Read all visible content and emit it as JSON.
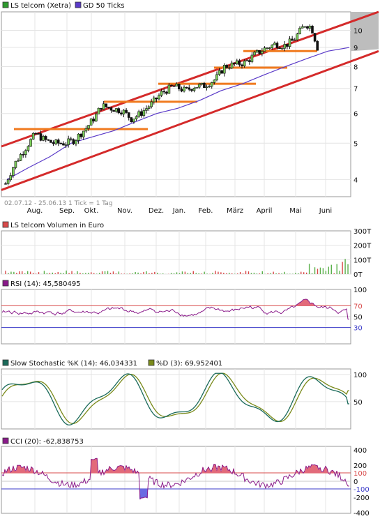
{
  "chart_data": [
    {
      "type": "candlestick",
      "legend": [
        {
          "label": "LS telcom (Xetra)",
          "color": "#2e9a2e"
        },
        {
          "label": "GD 50 Ticks",
          "color": "#5a3ac8"
        }
      ],
      "caption": "02.07.12 - 25.06.13   1 Tick = 1 Tag",
      "x_tick_labels": [
        "Aug.",
        "Sep.",
        "Okt.",
        "Nov.",
        "Dez.",
        "Jan.",
        "Feb.",
        "März",
        "April",
        "Mai",
        "Juni"
      ],
      "y_tick_labels": [
        "4",
        "5",
        "6",
        "7",
        "8",
        "9",
        "10"
      ],
      "y_scale": "log",
      "ylim": [
        3.6,
        11.2
      ],
      "price_path": {
        "x_month_index": [
          0,
          0.3,
          0.7,
          1.0,
          1.3,
          1.6,
          2.0,
          2.3,
          2.7,
          3.0,
          3.2,
          3.5,
          3.9,
          4.2,
          4.5,
          4.9,
          5.2,
          5.6,
          6.0,
          6.3,
          6.6,
          7.0,
          7.3,
          7.6,
          8.0,
          8.3,
          8.6,
          9.0,
          9.3,
          9.6,
          10.0,
          10.2,
          10.4
        ],
        "close": [
          3.9,
          4.4,
          4.9,
          5.3,
          5.1,
          5.0,
          5.0,
          5.1,
          5.5,
          5.9,
          6.3,
          6.2,
          6.1,
          5.8,
          6.0,
          6.4,
          6.8,
          7.1,
          6.9,
          7.1,
          7.1,
          7.4,
          8.0,
          8.1,
          8.2,
          8.6,
          8.9,
          9.2,
          9.1,
          9.4,
          10.4,
          10.2,
          9.0
        ]
      },
      "gd50": [
        4.0,
        4.3,
        4.6,
        5.0,
        5.2,
        5.4,
        5.7,
        6.0,
        6.2,
        6.5,
        6.9,
        7.2,
        7.6,
        8.0,
        8.4,
        8.8,
        9.0
      ],
      "trend_channel": {
        "upper": [
          4.9,
          11.2
        ],
        "lower": [
          3.75,
          8.8
        ]
      },
      "support_resistance_levels": [
        {
          "value": 5.45,
          "from": "Aug.",
          "to": "Dez."
        },
        {
          "value": 6.45,
          "from": "Nov.",
          "to": "Feb."
        },
        {
          "value": 7.2,
          "from": "Jan.",
          "to": "April"
        },
        {
          "value": 7.95,
          "from": "März",
          "to": "Mai"
        },
        {
          "value": 8.8,
          "from": "April",
          "to": "Juni"
        }
      ]
    },
    {
      "type": "bar",
      "legend": [
        {
          "label": "LS telcom Volumen in Euro",
          "color": "#d84a4a"
        }
      ],
      "y_tick_labels": [
        "300T",
        "200T",
        "100T",
        "0T"
      ],
      "ylim": [
        0,
        300
      ]
    },
    {
      "type": "line",
      "legend": [
        {
          "label": "RSI (14): 45,580495",
          "color": "#8a1a8a"
        }
      ],
      "y_tick_labels": [
        "100",
        "70",
        "50",
        "30"
      ],
      "ylim": [
        0,
        100
      ],
      "reference_lines": [
        70,
        50,
        30
      ],
      "last_value": 45.580495
    },
    {
      "type": "line",
      "legend": [
        {
          "label": "Slow Stochastic %K (14): 46,034331",
          "color": "#1a6a5a"
        },
        {
          "label": "%D (3): 69,952401",
          "color": "#7a8a1a"
        }
      ],
      "y_tick_labels": [
        "100",
        "50"
      ],
      "ylim": [
        0,
        110
      ],
      "last_k": 46.034331,
      "last_d": 69.952401
    },
    {
      "type": "line",
      "legend": [
        {
          "label": "CCI (20): -62,838753",
          "color": "#8a1a8a"
        }
      ],
      "y_tick_labels": [
        "400",
        "200",
        "100",
        "0",
        "-100",
        "-200",
        "-400"
      ],
      "ylim": [
        -400,
        400
      ],
      "reference_lines": [
        100,
        -100
      ],
      "last_value": -62.838753
    }
  ]
}
